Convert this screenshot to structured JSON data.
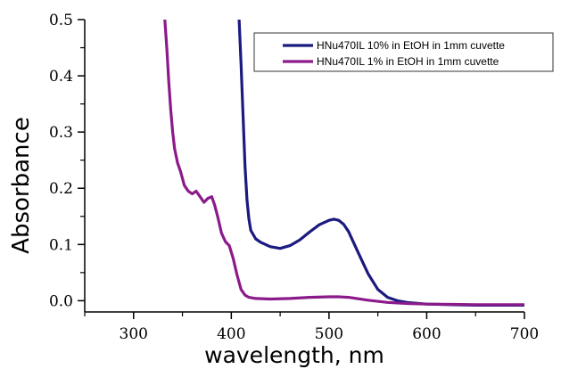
{
  "chart_data": {
    "type": "line",
    "xlabel": "wavelength, nm",
    "ylabel": "Absorbance",
    "xlim": [
      250,
      700
    ],
    "ylim": [
      -0.02,
      0.5
    ],
    "xticks": [
      300,
      400,
      500,
      600,
      700
    ],
    "yticks": [
      0.0,
      0.1,
      0.2,
      0.3,
      0.4,
      0.5
    ],
    "ytick_labels": [
      "0.0",
      "0.1",
      "0.2",
      "0.3",
      "0.4",
      "0.5"
    ],
    "grid": false,
    "legend_position": "top-right",
    "series": [
      {
        "name": "HNu470IL 10% in EtOH in 1mm cuvette",
        "color": "#1a1a80",
        "x": [
          408,
          410,
          412,
          414,
          416,
          418,
          420,
          425,
          430,
          440,
          450,
          460,
          470,
          480,
          490,
          500,
          505,
          510,
          515,
          520,
          530,
          540,
          550,
          560,
          570,
          580,
          600,
          650,
          700
        ],
        "y": [
          0.5,
          0.42,
          0.33,
          0.24,
          0.18,
          0.145,
          0.125,
          0.11,
          0.104,
          0.096,
          0.093,
          0.098,
          0.108,
          0.122,
          0.135,
          0.143,
          0.145,
          0.143,
          0.136,
          0.123,
          0.085,
          0.048,
          0.02,
          0.006,
          0.0,
          -0.003,
          -0.006,
          -0.008,
          -0.008
        ]
      },
      {
        "name": "HNu470IL 1% in EtOH in 1mm cuvette",
        "color": "#8b1a8b",
        "x": [
          332,
          334,
          336,
          338,
          340,
          342,
          345,
          348,
          352,
          356,
          360,
          364,
          368,
          372,
          376,
          380,
          383,
          386,
          390,
          394,
          398,
          402,
          406,
          410,
          414,
          418,
          425,
          440,
          460,
          480,
          500,
          510,
          520,
          540,
          560,
          580,
          600,
          650,
          700
        ],
        "y": [
          0.5,
          0.45,
          0.39,
          0.34,
          0.3,
          0.27,
          0.245,
          0.23,
          0.205,
          0.195,
          0.19,
          0.195,
          0.185,
          0.175,
          0.182,
          0.185,
          0.17,
          0.15,
          0.12,
          0.105,
          0.098,
          0.075,
          0.045,
          0.02,
          0.01,
          0.006,
          0.004,
          0.003,
          0.004,
          0.006,
          0.007,
          0.007,
          0.006,
          0.001,
          -0.003,
          -0.005,
          -0.006,
          -0.007,
          -0.007
        ]
      }
    ]
  }
}
